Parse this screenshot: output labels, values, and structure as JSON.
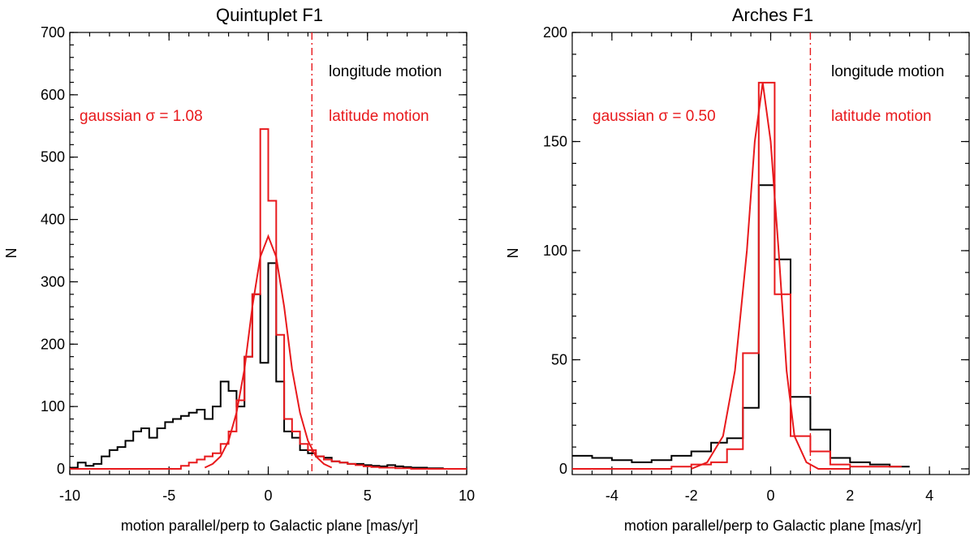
{
  "chart_data": [
    {
      "type": "histogram",
      "title": "Quintuplet F1",
      "xlabel": "motion parallel/perp to Galactic plane [mas/yr]",
      "ylabel": "N",
      "xlim": [
        -10,
        10
      ],
      "ylim": [
        0,
        700
      ],
      "xticks": [
        -10,
        -5,
        0,
        5,
        10
      ],
      "yticks": [
        0,
        100,
        200,
        300,
        400,
        500,
        600,
        700
      ],
      "xtick_labels": [
        "-10",
        "-5",
        "0",
        "5",
        "10"
      ],
      "ytick_labels": [
        "0",
        "100",
        "200",
        "300",
        "400",
        "500",
        "600",
        "700"
      ],
      "vline_x": 2.2,
      "annotations": [
        {
          "text": "longitude motion",
          "color": "#000000"
        },
        {
          "text": "latitude motion",
          "color": "#e8191c"
        },
        {
          "text": "gaussian σ = 1.08",
          "color": "#e8191c"
        }
      ],
      "series": [
        {
          "name": "longitude motion",
          "color": "#000000",
          "style": "step",
          "x": [
            -10.0,
            -9.6,
            -9.2,
            -8.8,
            -8.4,
            -8.0,
            -7.6,
            -7.2,
            -6.8,
            -6.4,
            -6.0,
            -5.6,
            -5.2,
            -4.8,
            -4.4,
            -4.0,
            -3.6,
            -3.2,
            -2.8,
            -2.4,
            -2.0,
            -1.6,
            -1.2,
            -0.8,
            -0.4,
            0.0,
            0.4,
            0.8,
            1.2,
            1.6,
            2.0,
            2.4,
            2.8,
            3.2,
            3.6,
            4.0,
            4.4,
            4.8,
            5.2,
            5.6,
            6.0,
            6.4,
            6.8,
            7.2,
            7.6,
            8.0,
            8.4,
            8.8,
            9.2,
            9.6,
            10.0
          ],
          "values": [
            2,
            10,
            5,
            8,
            20,
            30,
            35,
            45,
            60,
            65,
            50,
            65,
            75,
            80,
            85,
            90,
            95,
            80,
            100,
            140,
            125,
            100,
            180,
            280,
            170,
            330,
            140,
            60,
            50,
            30,
            25,
            20,
            18,
            12,
            10,
            8,
            8,
            6,
            5,
            4,
            6,
            4,
            3,
            2,
            2,
            1,
            1,
            0,
            0,
            0
          ]
        },
        {
          "name": "latitude motion",
          "color": "#e8191c",
          "style": "step",
          "x": [
            -10.0,
            -9.6,
            -9.2,
            -8.8,
            -8.4,
            -8.0,
            -7.6,
            -7.2,
            -6.8,
            -6.4,
            -6.0,
            -5.6,
            -5.2,
            -4.8,
            -4.4,
            -4.0,
            -3.6,
            -3.2,
            -2.8,
            -2.4,
            -2.0,
            -1.6,
            -1.2,
            -0.8,
            -0.4,
            0.0,
            0.4,
            0.8,
            1.2,
            1.6,
            2.0,
            2.4,
            2.8,
            3.2,
            3.6,
            4.0,
            4.4,
            4.8,
            5.2,
            5.6,
            6.0,
            6.4,
            6.8,
            7.2,
            7.6,
            8.0,
            8.4,
            8.8,
            9.2,
            9.6,
            10.0
          ],
          "values": [
            0,
            0,
            0,
            0,
            0,
            0,
            0,
            0,
            0,
            0,
            0,
            0,
            0,
            0,
            5,
            10,
            15,
            20,
            25,
            40,
            60,
            110,
            180,
            280,
            545,
            430,
            215,
            80,
            60,
            40,
            30,
            20,
            15,
            12,
            10,
            8,
            6,
            4,
            3,
            2,
            2,
            1,
            1,
            0,
            0,
            0,
            0,
            0,
            0,
            0
          ]
        },
        {
          "name": "gaussian fit",
          "color": "#e8191c",
          "style": "line",
          "x": [
            -3.2,
            -2.8,
            -2.4,
            -2.0,
            -1.6,
            -1.2,
            -0.8,
            -0.4,
            0.0,
            0.4,
            0.8,
            1.2,
            1.6,
            2.0,
            2.4,
            2.8,
            3.2
          ],
          "values": [
            2,
            8,
            20,
            45,
            90,
            160,
            260,
            340,
            373,
            340,
            260,
            160,
            90,
            45,
            20,
            8,
            2
          ]
        }
      ]
    },
    {
      "type": "histogram",
      "title": "Arches F1",
      "xlabel": "motion parallel/perp to Galactic plane [mas/yr]",
      "ylabel": "N",
      "xlim": [
        -5,
        5
      ],
      "ylim": [
        0,
        200
      ],
      "xticks": [
        -4,
        -2,
        0,
        2,
        4
      ],
      "yticks": [
        0,
        50,
        100,
        150,
        200
      ],
      "xtick_labels": [
        "-4",
        "-2",
        "0",
        "2",
        "4"
      ],
      "ytick_labels": [
        "0",
        "50",
        "100",
        "150",
        "200"
      ],
      "vline_x": 1.0,
      "annotations": [
        {
          "text": "longitude motion",
          "color": "#000000"
        },
        {
          "text": "latitude motion",
          "color": "#e8191c"
        },
        {
          "text": "gaussian σ = 0.50",
          "color": "#e8191c"
        }
      ],
      "series": [
        {
          "name": "longitude motion",
          "color": "#000000",
          "style": "step",
          "x": [
            -5.0,
            -4.5,
            -4.0,
            -3.5,
            -3.0,
            -2.5,
            -2.0,
            -1.5,
            -1.1,
            -0.7,
            -0.3,
            0.1,
            0.5,
            1.0,
            1.5,
            2.0,
            2.5,
            3.0,
            3.5
          ],
          "values": [
            6,
            5,
            4,
            3,
            4,
            6,
            8,
            12,
            14,
            28,
            130,
            96,
            33,
            18,
            5,
            3,
            2,
            1
          ]
        },
        {
          "name": "latitude motion",
          "color": "#e8191c",
          "style": "step",
          "x": [
            -5.0,
            -4.5,
            -4.0,
            -3.5,
            -3.0,
            -2.5,
            -2.0,
            -1.5,
            -1.1,
            -0.7,
            -0.3,
            0.1,
            0.5,
            1.0,
            1.5,
            2.0,
            2.5,
            3.0,
            3.3
          ],
          "values": [
            0,
            0,
            0,
            0,
            0,
            1,
            2,
            3,
            9,
            53,
            177,
            80,
            15,
            8,
            2,
            1,
            1,
            1
          ]
        },
        {
          "name": "gaussian fit",
          "color": "#e8191c",
          "style": "line",
          "x": [
            -2.0,
            -1.6,
            -1.2,
            -0.9,
            -0.6,
            -0.4,
            -0.2,
            0.0,
            0.2,
            0.4,
            0.6,
            0.9,
            1.2,
            1.6,
            2.0
          ],
          "values": [
            0,
            3,
            15,
            45,
            100,
            150,
            177,
            150,
            100,
            45,
            15,
            3,
            0,
            0,
            0
          ]
        }
      ]
    }
  ]
}
